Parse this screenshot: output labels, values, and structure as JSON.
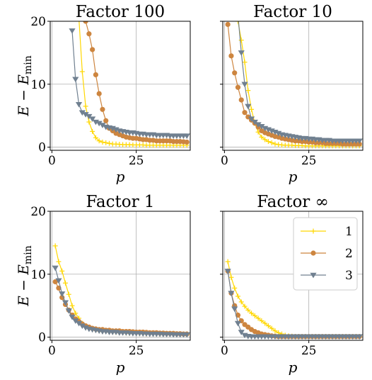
{
  "colors": {
    "s1": "#FFD700",
    "s2": "#CD853F",
    "s3": "#708090",
    "grid": "#b0b0b0"
  },
  "legend": {
    "placement": "top-right",
    "subplot": 3,
    "entries": [
      "1",
      "2",
      "3"
    ]
  },
  "chart_data": [
    {
      "type": "line",
      "title": "Factor 100",
      "xlabel": "p",
      "ylabel": "E − E_min",
      "xlim": [
        -0.5,
        41
      ],
      "ylim": [
        -0.5,
        20
      ],
      "xticks": [
        "0",
        "25"
      ],
      "yticks": [
        "0",
        "10",
        "20"
      ],
      "grid": true,
      "series": [
        {
          "name": "1",
          "marker": "plus",
          "x": [
            7,
            8,
            9,
            10,
            11,
            12,
            13,
            14,
            15,
            16,
            17,
            18,
            19,
            20,
            21,
            22,
            23,
            24,
            25,
            26,
            27,
            28,
            29,
            30,
            31,
            32,
            33,
            34,
            35,
            36,
            37,
            38,
            39,
            40
          ],
          "y": [
            22,
            20.5,
            12,
            6.5,
            4,
            2.5,
            1.5,
            1,
            0.8,
            0.7,
            0.6,
            0.5,
            0.5,
            0.45,
            0.4,
            0.4,
            0.4,
            0.35,
            0.35,
            0.35,
            0.35,
            0.3,
            0.3,
            0.3,
            0.3,
            0.3,
            0.3,
            0.3,
            0.3,
            0.3,
            0.3,
            0.3,
            0.3,
            0.3
          ]
        },
        {
          "name": "2",
          "marker": "circle",
          "x": [
            10,
            11,
            12,
            13,
            14,
            15,
            16,
            17,
            18,
            19,
            20,
            21,
            22,
            23,
            24,
            25,
            26,
            27,
            28,
            29,
            30,
            31,
            32,
            33,
            34,
            35,
            36,
            37,
            38,
            39,
            40
          ],
          "y": [
            20,
            18,
            15.5,
            11.5,
            8.5,
            6,
            4.2,
            3,
            2.6,
            2.2,
            2,
            1.8,
            1.6,
            1.5,
            1.4,
            1.4,
            1.3,
            1.2,
            1.2,
            1.1,
            1.1,
            1,
            1,
            1,
            1,
            1,
            0.9,
            0.9,
            0.9,
            0.85,
            0.8
          ]
        },
        {
          "name": "3",
          "marker": "triangle",
          "x": [
            6,
            7,
            8,
            9,
            10,
            11,
            12,
            13,
            14,
            15,
            16,
            17,
            18,
            19,
            20,
            21,
            22,
            23,
            24,
            25,
            26,
            27,
            28,
            29,
            30,
            31,
            32,
            33,
            34,
            35,
            36,
            37,
            38,
            39,
            40
          ],
          "y": [
            18.5,
            10.8,
            6.8,
            5.5,
            5.2,
            4.9,
            4.5,
            4,
            3.8,
            3.5,
            3.2,
            3.1,
            3,
            2.8,
            2.6,
            2.5,
            2.4,
            2.3,
            2.3,
            2.2,
            2.1,
            2.1,
            2,
            2,
            2,
            1.9,
            1.9,
            1.9,
            1.9,
            1.8,
            1.8,
            1.8,
            1.8,
            1.8,
            1.8
          ]
        }
      ]
    },
    {
      "type": "line",
      "title": "Factor 10",
      "xlabel": "p",
      "ylabel": "",
      "xlim": [
        -0.5,
        41
      ],
      "ylim": [
        -0.5,
        20
      ],
      "xticks": [
        "0",
        "25"
      ],
      "yticks": [],
      "grid": true,
      "series": [
        {
          "name": "1",
          "marker": "plus",
          "x": [
            3,
            4,
            5,
            6,
            7,
            8,
            9,
            10,
            11,
            12,
            13,
            14,
            15,
            16,
            17,
            18,
            19,
            20,
            21,
            22,
            23,
            24,
            25,
            26,
            27,
            28,
            29,
            30,
            31,
            32,
            33,
            34,
            35,
            36,
            37,
            38,
            39,
            40
          ],
          "y": [
            21,
            20,
            17,
            13.5,
            9,
            6,
            3.8,
            2.4,
            1.6,
            1.2,
            0.9,
            0.7,
            0.5,
            0.4,
            0.35,
            0.3,
            0.3,
            0.3,
            0.25,
            0.25,
            0.25,
            0.2,
            0.2,
            0.2,
            0.2,
            0.2,
            0.2,
            0.2,
            0.2,
            0.2,
            0.2,
            0.2,
            0.2,
            0.2,
            0.2,
            0.2,
            0.2,
            0.2
          ]
        },
        {
          "name": "2",
          "marker": "circle",
          "x": [
            1,
            2,
            3,
            4,
            5,
            6,
            7,
            8,
            9,
            10,
            11,
            12,
            13,
            14,
            15,
            16,
            17,
            18,
            19,
            20,
            21,
            22,
            23,
            24,
            25,
            26,
            27,
            28,
            29,
            30,
            31,
            32,
            33,
            34,
            35,
            36,
            37,
            38,
            39,
            40
          ],
          "y": [
            19.5,
            14.5,
            11.8,
            9.5,
            7.5,
            5.5,
            4.8,
            4.3,
            3.8,
            3.2,
            2.6,
            2.3,
            2.1,
            1.9,
            1.7,
            1.6,
            1.4,
            1.3,
            1.2,
            1.1,
            1,
            1,
            0.9,
            0.9,
            0.8,
            0.8,
            0.7,
            0.7,
            0.7,
            0.6,
            0.6,
            0.6,
            0.6,
            0.6,
            0.5,
            0.5,
            0.5,
            0.5,
            0.5,
            0.5
          ]
        },
        {
          "name": "3",
          "marker": "triangle",
          "x": [
            4,
            5,
            6,
            7,
            8,
            9,
            10,
            11,
            12,
            13,
            14,
            15,
            16,
            17,
            18,
            19,
            20,
            21,
            22,
            23,
            24,
            25,
            26,
            27,
            28,
            29,
            30,
            31,
            32,
            33,
            34,
            35,
            36,
            37,
            38,
            39,
            40
          ],
          "y": [
            21,
            15,
            10,
            6.5,
            4.5,
            4,
            3.6,
            3.3,
            3,
            2.8,
            2.6,
            2.4,
            2.2,
            2,
            1.9,
            1.8,
            1.7,
            1.6,
            1.5,
            1.4,
            1.4,
            1.3,
            1.3,
            1.2,
            1.2,
            1.1,
            1.1,
            1.1,
            1,
            1,
            1,
            1,
            1,
            1,
            1,
            1,
            1
          ]
        }
      ]
    },
    {
      "type": "line",
      "title": "Factor 1",
      "xlabel": "p",
      "ylabel": "E − E_min",
      "xlim": [
        -0.5,
        41
      ],
      "ylim": [
        -0.5,
        20
      ],
      "xticks": [
        "0",
        "25"
      ],
      "yticks": [
        "0",
        "10",
        "20"
      ],
      "grid": true,
      "series": [
        {
          "name": "1",
          "marker": "plus",
          "x": [
            1,
            2,
            3,
            4,
            5,
            6,
            7,
            8,
            9,
            10,
            11,
            12,
            13,
            14,
            15,
            16,
            17,
            18,
            19,
            20,
            21,
            22,
            23,
            24,
            25,
            26,
            27,
            28,
            29,
            30,
            31,
            32,
            33,
            34,
            35,
            36,
            37,
            38,
            39,
            40
          ],
          "y": [
            14.5,
            12,
            10.5,
            8.6,
            6.8,
            5,
            3.8,
            3,
            2.2,
            1.7,
            1.4,
            1.2,
            1.1,
            1,
            0.9,
            0.9,
            0.8,
            0.8,
            0.75,
            0.7,
            0.7,
            0.65,
            0.6,
            0.6,
            0.6,
            0.55,
            0.55,
            0.5,
            0.5,
            0.5,
            0.5,
            0.45,
            0.45,
            0.45,
            0.45,
            0.4,
            0.4,
            0.4,
            0.4,
            0.4
          ]
        },
        {
          "name": "2",
          "marker": "circle",
          "x": [
            1,
            2,
            3,
            4,
            5,
            6,
            7,
            8,
            9,
            10,
            11,
            12,
            13,
            14,
            15,
            16,
            17,
            18,
            19,
            20,
            21,
            22,
            23,
            24,
            25,
            26,
            27,
            28,
            29,
            30,
            31,
            32,
            33,
            34,
            35,
            36,
            37,
            38,
            39,
            40
          ],
          "y": [
            8.8,
            7.8,
            6.3,
            5.2,
            4.3,
            3.5,
            2.9,
            2.5,
            2.1,
            1.8,
            1.6,
            1.4,
            1.3,
            1.2,
            1.2,
            1.1,
            1.1,
            1,
            1,
            1,
            0.9,
            0.9,
            0.9,
            0.85,
            0.8,
            0.8,
            0.8,
            0.75,
            0.7,
            0.7,
            0.7,
            0.65,
            0.65,
            0.6,
            0.6,
            0.6,
            0.55,
            0.55,
            0.5,
            0.5
          ]
        },
        {
          "name": "3",
          "marker": "triangle",
          "x": [
            1,
            2,
            3,
            4,
            5,
            6,
            7,
            8,
            9,
            10,
            11,
            12,
            13,
            14,
            15,
            16,
            17,
            18,
            19,
            20,
            21,
            22,
            23,
            24,
            25,
            26,
            27,
            28,
            29,
            30,
            31,
            32,
            33,
            34,
            35,
            36,
            37,
            38,
            39,
            40
          ],
          "y": [
            11,
            9,
            6.9,
            5.5,
            4.2,
            3.2,
            2.6,
            2.2,
            1.8,
            1.5,
            1.3,
            1.2,
            1.1,
            1,
            0.9,
            0.9,
            0.8,
            0.8,
            0.8,
            0.7,
            0.7,
            0.7,
            0.65,
            0.6,
            0.6,
            0.6,
            0.55,
            0.55,
            0.5,
            0.5,
            0.5,
            0.5,
            0.45,
            0.45,
            0.45,
            0.4,
            0.4,
            0.4,
            0.4,
            0.4
          ]
        }
      ]
    },
    {
      "type": "line",
      "title": "Factor ∞",
      "xlabel": "p",
      "ylabel": "",
      "xlim": [
        -0.5,
        41
      ],
      "ylim": [
        -0.5,
        20
      ],
      "xticks": [
        "0",
        "25"
      ],
      "yticks": [],
      "grid": true,
      "series": [
        {
          "name": "1",
          "marker": "plus",
          "x": [
            1,
            2,
            3,
            4,
            5,
            6,
            7,
            8,
            9,
            10,
            11,
            12,
            13,
            14,
            15,
            16,
            17,
            18,
            19,
            20,
            21,
            22,
            23,
            24,
            25,
            26,
            27,
            28,
            29,
            30,
            31,
            32,
            33,
            34,
            35,
            36,
            37,
            38,
            39,
            40
          ],
          "y": [
            12,
            9.5,
            7.8,
            6.5,
            5.6,
            4.9,
            4.3,
            3.8,
            3.4,
            3,
            2.6,
            2.2,
            1.8,
            1.4,
            1,
            0.7,
            0.5,
            0.3,
            0.2,
            0.15,
            0.1,
            0.1,
            0.1,
            0.1,
            0.1,
            0.1,
            0.1,
            0.1,
            0.1,
            0.1,
            0.1,
            0.1,
            0.1,
            0.1,
            0.1,
            0.1,
            0.1,
            0.1,
            0.1,
            0.1
          ]
        },
        {
          "name": "2",
          "marker": "circle",
          "x": [
            1,
            2,
            3,
            4,
            5,
            6,
            7,
            8,
            9,
            10,
            11,
            12,
            13,
            14,
            15,
            16,
            17,
            18,
            19,
            20,
            21,
            22,
            23,
            24,
            25,
            26,
            27,
            28,
            29,
            30,
            31,
            32,
            33,
            34,
            35,
            36,
            37,
            38,
            39,
            40
          ],
          "y": [
            10.5,
            7,
            5,
            3.5,
            2.6,
            2,
            1.6,
            1.2,
            0.9,
            0.7,
            0.5,
            0.4,
            0.3,
            0.2,
            0.15,
            0.1,
            0.1,
            0.1,
            0.1,
            0.1,
            0.1,
            0.1,
            0.1,
            0.1,
            0.1,
            0.1,
            0.1,
            0.1,
            0.1,
            0.1,
            0.1,
            0.1,
            0.1,
            0.1,
            0.1,
            0.1,
            0.1,
            0.1,
            0.1,
            0.1
          ]
        },
        {
          "name": "3",
          "marker": "triangle",
          "x": [
            1,
            2,
            3,
            4,
            5,
            6,
            7,
            8,
            9,
            10,
            11,
            12,
            13,
            14,
            15,
            16,
            17,
            18,
            19,
            20,
            21,
            22,
            23,
            24,
            25,
            26,
            27,
            28,
            29,
            30,
            31,
            32,
            33,
            34,
            35,
            36,
            37,
            38,
            39,
            40
          ],
          "y": [
            10.5,
            7,
            4.5,
            2.2,
            0.8,
            0.3,
            0.15,
            0.1,
            0.1,
            0.1,
            0.1,
            0.1,
            0.1,
            0.1,
            0.1,
            0.1,
            0.1,
            0.1,
            0.1,
            0.1,
            0.1,
            0.1,
            0.1,
            0.1,
            0.1,
            0.1,
            0.1,
            0.1,
            0.1,
            0.1,
            0.1,
            0.1,
            0.1,
            0.1,
            0.1,
            0.1,
            0.1,
            0.1,
            0.1,
            0.1
          ]
        }
      ]
    }
  ]
}
